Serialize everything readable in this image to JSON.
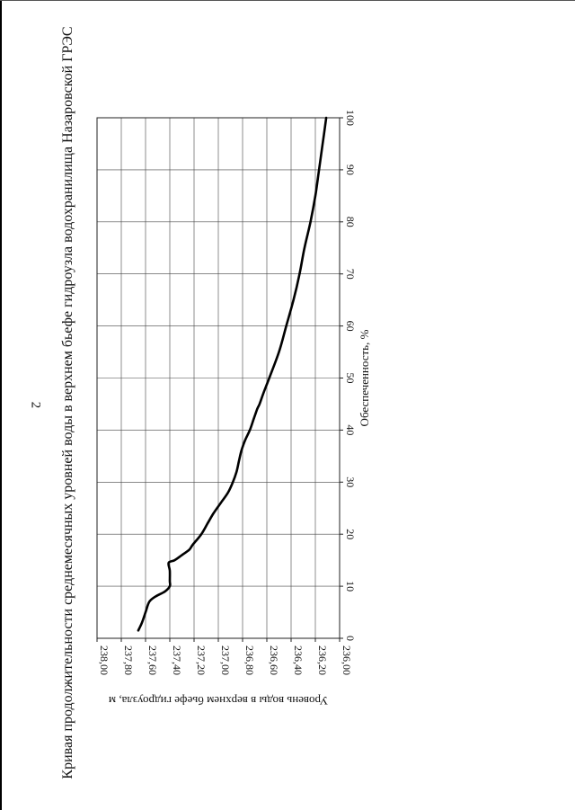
{
  "page": {
    "number": "2"
  },
  "chart_data": {
    "type": "line",
    "title": "Кривая продолжительности среднемесячных уровней воды в верхнем бьефе гидроузла водохранилища Назаровской ГРЭС",
    "xlabel": "Обеспеченность, %",
    "ylabel": "Уровень воды в верхнем бьефе гидроузла, м",
    "xlim": [
      0,
      100
    ],
    "ylim": [
      236.0,
      238.0
    ],
    "x_ticks": [
      "0",
      "10",
      "20",
      "30",
      "40",
      "50",
      "60",
      "70",
      "80",
      "90",
      "100"
    ],
    "y_ticks": [
      "236,00",
      "236,20",
      "236,40",
      "236,60",
      "236,80",
      "237,00",
      "237,20",
      "237,40",
      "237,60",
      "237,80",
      "238,00"
    ],
    "grid": true,
    "orientation": "rotated 90° clockwise",
    "series": [
      {
        "color": "#000000",
        "x": [
          1.5,
          3,
          5,
          7,
          8,
          9,
          10,
          11,
          13,
          14.5,
          15,
          16,
          17,
          18,
          20,
          22,
          24,
          26,
          28,
          30,
          32,
          34,
          36,
          38,
          40,
          42,
          44,
          45,
          47,
          50,
          55,
          60,
          65,
          70,
          75,
          80,
          85,
          90,
          95,
          100
        ],
        "y": [
          237.66,
          237.63,
          237.6,
          237.57,
          237.52,
          237.44,
          237.4,
          237.4,
          237.4,
          237.41,
          237.36,
          237.3,
          237.24,
          237.21,
          237.14,
          237.09,
          237.04,
          236.98,
          236.92,
          236.88,
          236.85,
          236.83,
          236.81,
          236.78,
          236.74,
          236.71,
          236.68,
          236.66,
          236.63,
          236.58,
          236.5,
          236.44,
          236.38,
          236.33,
          236.29,
          236.24,
          236.2,
          236.17,
          236.14,
          236.11
        ]
      }
    ]
  }
}
